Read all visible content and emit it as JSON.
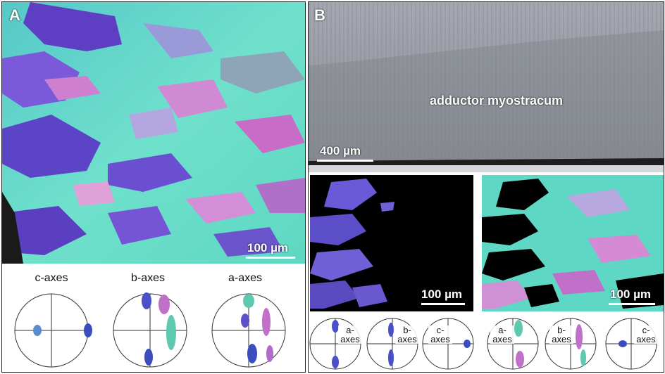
{
  "panel_a": {
    "label": "A",
    "scale_bar": "100 µm",
    "pole_figures": [
      {
        "title": "c-axes"
      },
      {
        "title": "b-axes"
      },
      {
        "title": "a-axes"
      }
    ]
  },
  "panel_b": {
    "label": "B",
    "micrograph_label": "adductor myostracum",
    "micrograph_scale_bar": "400 µm",
    "left_map_scale_bar": "100 µm",
    "right_map_scale_bar": "100 µm",
    "left_pole_figures": [
      {
        "title_line1": "a-",
        "title_line2": "axes"
      },
      {
        "title_line1": "b-",
        "title_line2": "axes"
      },
      {
        "title_line1": "c-",
        "title_line2": "axes"
      }
    ],
    "right_pole_figures": [
      {
        "title_line1": "a-",
        "title_line2": "axes"
      },
      {
        "title_line1": "b-",
        "title_line2": "axes"
      },
      {
        "title_line1": "c-",
        "title_line2": "axes"
      }
    ]
  },
  "colors": {
    "teal": "#5fe0c8",
    "cyan": "#6ec9d6",
    "violet": "#6a4fd0",
    "pink": "#d08ad4",
    "magenta": "#c060c0",
    "gray": "#8c8f98"
  }
}
